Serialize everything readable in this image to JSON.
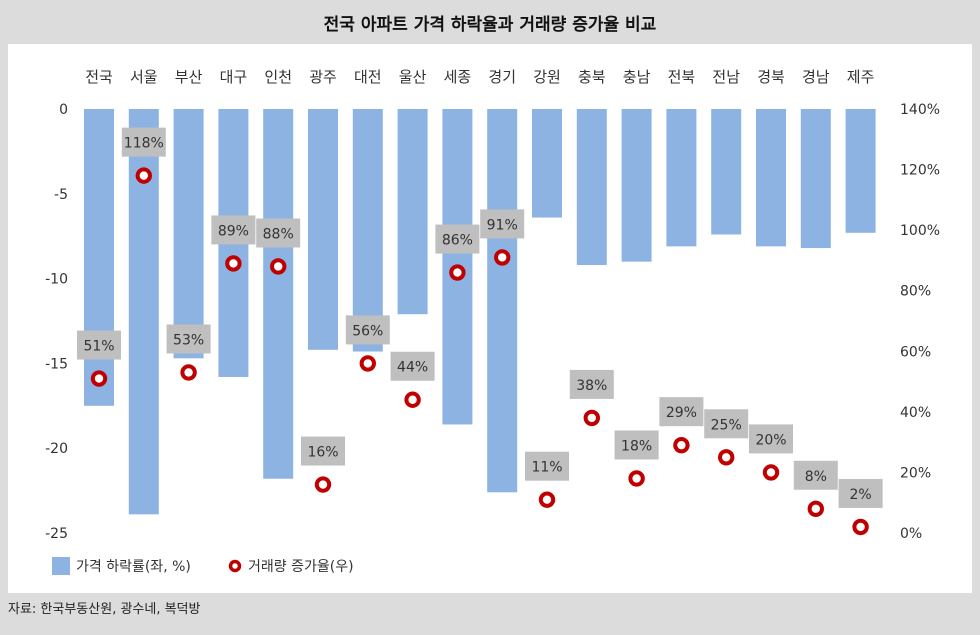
{
  "title": "전국 아파트 가격 하락율과 거래량 증가율 비교",
  "source": "자료: 한국부동산원, 광수네, 복덕방",
  "colors": {
    "bar": "#8db3e2",
    "marker": "#c00000",
    "label_box": "#bfbfbf",
    "background": "#dcdcdc",
    "panel": "#ffffff"
  },
  "chart_data": {
    "type": "bar+scatter",
    "categories": [
      "전국",
      "서울",
      "부산",
      "대구",
      "인천",
      "광주",
      "대전",
      "울산",
      "세종",
      "경기",
      "강원",
      "충북",
      "충남",
      "전북",
      "전남",
      "경북",
      "경남",
      "제주"
    ],
    "series": [
      {
        "name": "가격 하락률(좌, %)",
        "type": "bar",
        "axis": "left",
        "values": [
          -17.5,
          -23.9,
          -14.7,
          -15.8,
          -21.8,
          -14.2,
          -14.3,
          -12.1,
          -18.6,
          -22.6,
          -6.4,
          -9.2,
          -9.0,
          -8.1,
          -7.4,
          -8.1,
          -8.2,
          -7.3
        ]
      },
      {
        "name": "거래량 증가율(우)",
        "type": "scatter",
        "axis": "right",
        "values": [
          51,
          118,
          53,
          89,
          88,
          16,
          56,
          44,
          86,
          91,
          11,
          38,
          18,
          29,
          25,
          20,
          8,
          2
        ],
        "labels": [
          "51%",
          "118%",
          "53%",
          "89%",
          "88%",
          "16%",
          "56%",
          "44%",
          "86%",
          "91%",
          "11%",
          "38%",
          "18%",
          "29%",
          "25%",
          "20%",
          "8%",
          "2%"
        ]
      }
    ],
    "y_left": {
      "range": [
        -25,
        0
      ],
      "ticks": [
        0,
        -5,
        -10,
        -15,
        -20,
        -25
      ],
      "tick_labels": [
        "0",
        "-5",
        "-10",
        "-15",
        "-20",
        "-25"
      ]
    },
    "y_right": {
      "range": [
        0,
        140
      ],
      "ticks": [
        140,
        120,
        100,
        80,
        60,
        40,
        20,
        0
      ],
      "tick_labels": [
        "140%",
        "120%",
        "100%",
        "80%",
        "60%",
        "40%",
        "20%",
        "0%"
      ]
    },
    "legend": {
      "position": "bottom-left",
      "entries": [
        "가격 하락률(좌, %)",
        "거래량 증가율(우)"
      ]
    }
  }
}
